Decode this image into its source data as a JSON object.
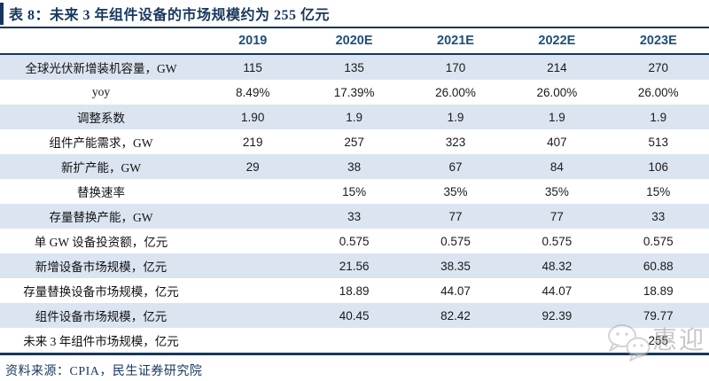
{
  "title": "表 8：未来 3 年组件设备的市场规模约为 255 亿元",
  "table": {
    "columns": [
      "",
      "2019",
      "2020E",
      "2021E",
      "2022E",
      "2023E"
    ],
    "rows": [
      [
        "全球光伏新增装机容量，GW",
        "115",
        "135",
        "170",
        "214",
        "270"
      ],
      [
        "yoy",
        "8.49%",
        "17.39%",
        "26.00%",
        "26.00%",
        "26.00%"
      ],
      [
        "调整系数",
        "1.90",
        "1.9",
        "1.9",
        "1.9",
        "1.9"
      ],
      [
        "组件产能需求，GW",
        "219",
        "257",
        "323",
        "407",
        "513"
      ],
      [
        "新扩产能，GW",
        "29",
        "38",
        "67",
        "84",
        "106"
      ],
      [
        "替换速率",
        "",
        "15%",
        "35%",
        "35%",
        "15%"
      ],
      [
        "存量替换产能，GW",
        "",
        "33",
        "77",
        "77",
        "33"
      ],
      [
        "单 GW 设备投资额，亿元",
        "",
        "0.575",
        "0.575",
        "0.575",
        "0.575"
      ],
      [
        "新增设备市场规模，亿元",
        "",
        "21.56",
        "38.35",
        "48.32",
        "60.88"
      ],
      [
        "存量替换设备市场规模，亿元",
        "",
        "18.89",
        "44.07",
        "44.07",
        "18.89"
      ],
      [
        "组件设备市场规模，亿元",
        "",
        "40.45",
        "82.42",
        "92.39",
        "79.77"
      ],
      [
        "未来 3 年组件市场规模，亿元",
        "",
        "",
        "",
        "",
        "255"
      ]
    ]
  },
  "source_label": "资料来源：CPIA，民生证券研究院",
  "watermark": {
    "icon": "wechat-chat-bubbles-icon",
    "text": "惠迎"
  },
  "colors": {
    "navy": "#17375e",
    "header_text": "#1f4e79",
    "row_shade": "#dbe5f1",
    "body_text": "#1a1a1a",
    "watermark_gray": "#9a9a9a"
  }
}
